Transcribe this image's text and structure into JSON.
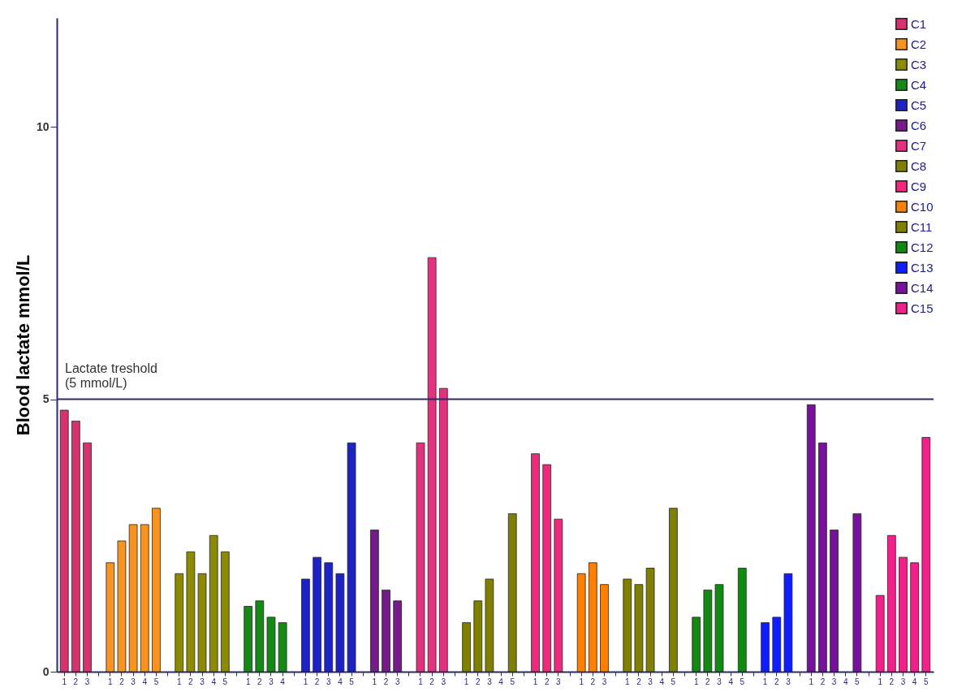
{
  "chart_data": {
    "type": "bar",
    "ylabel": "Blood lactate mmol/L",
    "categories": [
      "1",
      "2",
      "3",
      null,
      "1",
      "2",
      "3",
      "4",
      "5",
      null,
      "1",
      "2",
      "3",
      "4",
      "5",
      null,
      "1",
      "2",
      "3",
      "4",
      null,
      "1",
      "2",
      "3",
      "4",
      "5",
      null,
      "1",
      "2",
      "3",
      null,
      "1",
      "2",
      "3",
      null,
      "1",
      "2",
      "3",
      "4",
      "5",
      null,
      "1",
      "2",
      "3",
      null,
      "1",
      "2",
      "3",
      null,
      "1",
      "2",
      "3",
      "4",
      "5",
      null,
      "1",
      "2",
      "3",
      "4",
      "5",
      null,
      "1",
      "2",
      "3",
      null,
      "1",
      "2",
      "3",
      "4",
      "5",
      null,
      "1",
      "2",
      "3",
      "4",
      "5"
    ],
    "series": [
      {
        "name": "C1",
        "color": "#d9306f",
        "values": [
          4.8,
          4.6,
          4.2,
          null,
          null,
          null,
          null,
          null,
          null,
          null,
          null,
          null,
          null,
          null,
          null,
          null,
          null,
          null,
          null,
          null,
          null,
          null,
          null,
          null,
          null,
          null,
          null,
          null,
          null,
          null,
          null,
          null,
          null,
          null,
          null,
          null,
          null,
          null,
          null,
          null,
          null,
          null,
          null,
          null,
          null,
          null,
          null,
          null,
          null,
          null,
          null,
          null,
          null,
          null,
          null,
          null,
          null,
          null,
          null,
          null,
          null,
          null,
          null,
          null,
          null,
          null,
          null,
          null,
          null,
          null,
          null,
          null,
          null,
          null,
          null,
          null
        ]
      },
      {
        "name": "C2",
        "color": "#f7931e",
        "values": [
          null,
          null,
          null,
          null,
          2.0,
          2.4,
          2.7,
          2.7,
          3.0,
          null,
          null,
          null,
          null,
          null,
          null,
          null,
          null,
          null,
          null,
          null,
          null,
          null,
          null,
          null,
          null,
          null,
          null,
          null,
          null,
          null,
          null,
          null,
          null,
          null,
          null,
          null,
          null,
          null,
          null,
          null,
          null,
          null,
          null,
          null,
          null,
          null,
          null,
          null,
          null,
          null,
          null,
          null,
          null,
          null,
          null,
          null,
          null,
          null,
          null,
          null,
          null,
          null,
          null,
          null,
          null,
          null,
          null,
          null,
          null,
          null,
          null,
          null,
          null,
          null,
          null,
          null
        ]
      },
      {
        "name": "C3",
        "color": "#8c8a00",
        "values": [
          null,
          null,
          null,
          null,
          null,
          null,
          null,
          null,
          null,
          null,
          1.8,
          2.2,
          1.8,
          2.5,
          2.2,
          null,
          null,
          null,
          null,
          null,
          null,
          null,
          null,
          null,
          null,
          null,
          null,
          null,
          null,
          null,
          null,
          null,
          null,
          null,
          null,
          null,
          null,
          null,
          null,
          null,
          null,
          null,
          null,
          null,
          null,
          null,
          null,
          null,
          null,
          null,
          null,
          null,
          null,
          null,
          null,
          null,
          null,
          null,
          null,
          null,
          null,
          null,
          null,
          null,
          null,
          null,
          null,
          null,
          null,
          null,
          null,
          null,
          null,
          null,
          null,
          null
        ]
      },
      {
        "name": "C4",
        "color": "#138a13",
        "values": [
          null,
          null,
          null,
          null,
          null,
          null,
          null,
          null,
          null,
          null,
          null,
          null,
          null,
          null,
          null,
          null,
          1.2,
          1.3,
          1.0,
          0.9,
          null,
          null,
          null,
          null,
          null,
          null,
          null,
          null,
          null,
          null,
          null,
          null,
          null,
          null,
          null,
          null,
          null,
          null,
          null,
          null,
          null,
          null,
          null,
          null,
          null,
          null,
          null,
          null,
          null,
          null,
          null,
          null,
          null,
          null,
          null,
          null,
          null,
          null,
          null,
          null,
          null,
          null,
          null,
          null,
          null,
          null,
          null,
          null,
          null,
          null,
          null,
          null,
          null,
          null,
          null,
          null
        ]
      },
      {
        "name": "C5",
        "color": "#1c22c4",
        "values": [
          null,
          null,
          null,
          null,
          null,
          null,
          null,
          null,
          null,
          null,
          null,
          null,
          null,
          null,
          null,
          null,
          null,
          null,
          null,
          null,
          null,
          1.7,
          2.1,
          2.0,
          1.8,
          4.2,
          null,
          null,
          null,
          null,
          null,
          null,
          null,
          null,
          null,
          null,
          null,
          null,
          null,
          null,
          null,
          null,
          null,
          null,
          null,
          null,
          null,
          null,
          null,
          null,
          null,
          null,
          null,
          null,
          null,
          null,
          null,
          null,
          null,
          null,
          null,
          null,
          null,
          null,
          null,
          null,
          null,
          null,
          null,
          null,
          null,
          null,
          null,
          null,
          null,
          null
        ]
      },
      {
        "name": "C6",
        "color": "#761a8c",
        "values": [
          null,
          null,
          null,
          null,
          null,
          null,
          null,
          null,
          null,
          null,
          null,
          null,
          null,
          null,
          null,
          null,
          null,
          null,
          null,
          null,
          null,
          null,
          null,
          null,
          null,
          null,
          null,
          2.6,
          1.5,
          1.3,
          null,
          null,
          null,
          null,
          null,
          null,
          null,
          null,
          null,
          null,
          null,
          null,
          null,
          null,
          null,
          null,
          null,
          null,
          null,
          null,
          null,
          null,
          null,
          null,
          null,
          null,
          null,
          null,
          null,
          null,
          null,
          null,
          null,
          null,
          null,
          null,
          null,
          null,
          null,
          null,
          null,
          null,
          null,
          null,
          null,
          null
        ]
      },
      {
        "name": "C7",
        "color": "#e3307f",
        "values": [
          null,
          null,
          null,
          null,
          null,
          null,
          null,
          null,
          null,
          null,
          null,
          null,
          null,
          null,
          null,
          null,
          null,
          null,
          null,
          null,
          null,
          null,
          null,
          null,
          null,
          null,
          null,
          null,
          null,
          null,
          null,
          4.2,
          7.6,
          5.2,
          null,
          null,
          null,
          null,
          null,
          null,
          null,
          null,
          null,
          null,
          null,
          null,
          null,
          null,
          null,
          null,
          null,
          null,
          null,
          null,
          null,
          null,
          null,
          null,
          null,
          null,
          null,
          null,
          null,
          null,
          null,
          null,
          null,
          null,
          null,
          null,
          null,
          null,
          null,
          null,
          null,
          null
        ]
      },
      {
        "name": "C8",
        "color": "#808000",
        "values": [
          null,
          null,
          null,
          null,
          null,
          null,
          null,
          null,
          null,
          null,
          null,
          null,
          null,
          null,
          null,
          null,
          null,
          null,
          null,
          null,
          null,
          null,
          null,
          null,
          null,
          null,
          null,
          null,
          null,
          null,
          null,
          null,
          null,
          null,
          null,
          0.9,
          1.3,
          1.7,
          null,
          2.9,
          null,
          null,
          null,
          null,
          null,
          null,
          null,
          null,
          null,
          null,
          null,
          null,
          null,
          null,
          null,
          null,
          null,
          null,
          null,
          null,
          null,
          null,
          null,
          null,
          null,
          null,
          null,
          null,
          null,
          null,
          null,
          null,
          null,
          null,
          null,
          null
        ]
      },
      {
        "name": "C9",
        "color": "#f2287f",
        "values": [
          null,
          null,
          null,
          null,
          null,
          null,
          null,
          null,
          null,
          null,
          null,
          null,
          null,
          null,
          null,
          null,
          null,
          null,
          null,
          null,
          null,
          null,
          null,
          null,
          null,
          null,
          null,
          null,
          null,
          null,
          null,
          null,
          null,
          null,
          null,
          null,
          null,
          null,
          null,
          null,
          null,
          4.0,
          3.8,
          2.8,
          null,
          null,
          null,
          null,
          null,
          null,
          null,
          null,
          null,
          null,
          null,
          null,
          null,
          null,
          null,
          null,
          null,
          null,
          null,
          null,
          null,
          null,
          null,
          null,
          null,
          null,
          null,
          null,
          null,
          null,
          null,
          null
        ]
      },
      {
        "name": "C10",
        "color": "#ff8000",
        "values": [
          null,
          null,
          null,
          null,
          null,
          null,
          null,
          null,
          null,
          null,
          null,
          null,
          null,
          null,
          null,
          null,
          null,
          null,
          null,
          null,
          null,
          null,
          null,
          null,
          null,
          null,
          null,
          null,
          null,
          null,
          null,
          null,
          null,
          null,
          null,
          null,
          null,
          null,
          null,
          null,
          null,
          null,
          null,
          null,
          null,
          1.8,
          2.0,
          1.6,
          null,
          null,
          null,
          null,
          null,
          null,
          null,
          null,
          null,
          null,
          null,
          null,
          null,
          null,
          null,
          null,
          null,
          null,
          null,
          null,
          null,
          null,
          null,
          null,
          null,
          null,
          null,
          null
        ]
      },
      {
        "name": "C11",
        "color": "#7f7f00",
        "values": [
          null,
          null,
          null,
          null,
          null,
          null,
          null,
          null,
          null,
          null,
          null,
          null,
          null,
          null,
          null,
          null,
          null,
          null,
          null,
          null,
          null,
          null,
          null,
          null,
          null,
          null,
          null,
          null,
          null,
          null,
          null,
          null,
          null,
          null,
          null,
          null,
          null,
          null,
          null,
          null,
          null,
          null,
          null,
          null,
          null,
          null,
          null,
          null,
          null,
          1.7,
          1.6,
          1.9,
          null,
          3.0,
          null,
          null,
          null,
          null,
          null,
          null,
          null,
          null,
          null,
          null,
          null,
          null,
          null,
          null,
          null,
          null,
          null,
          null,
          null,
          null,
          null,
          null
        ]
      },
      {
        "name": "C12",
        "color": "#118a11",
        "values": [
          null,
          null,
          null,
          null,
          null,
          null,
          null,
          null,
          null,
          null,
          null,
          null,
          null,
          null,
          null,
          null,
          null,
          null,
          null,
          null,
          null,
          null,
          null,
          null,
          null,
          null,
          null,
          null,
          null,
          null,
          null,
          null,
          null,
          null,
          null,
          null,
          null,
          null,
          null,
          null,
          null,
          null,
          null,
          null,
          null,
          null,
          null,
          null,
          null,
          null,
          null,
          null,
          null,
          null,
          null,
          1.0,
          1.5,
          1.6,
          null,
          1.9,
          null,
          null,
          null,
          null,
          null,
          null,
          null,
          null,
          null,
          null,
          null,
          null,
          null,
          null,
          null,
          null
        ]
      },
      {
        "name": "C13",
        "color": "#0f1eff",
        "values": [
          null,
          null,
          null,
          null,
          null,
          null,
          null,
          null,
          null,
          null,
          null,
          null,
          null,
          null,
          null,
          null,
          null,
          null,
          null,
          null,
          null,
          null,
          null,
          null,
          null,
          null,
          null,
          null,
          null,
          null,
          null,
          null,
          null,
          null,
          null,
          null,
          null,
          null,
          null,
          null,
          null,
          null,
          null,
          null,
          null,
          null,
          null,
          null,
          null,
          null,
          null,
          null,
          null,
          null,
          null,
          null,
          null,
          null,
          null,
          null,
          null,
          0.9,
          1.0,
          1.8,
          null,
          null,
          null,
          null,
          null,
          null,
          null,
          null,
          null,
          null,
          null,
          null
        ]
      },
      {
        "name": "C14",
        "color": "#7a10a0",
        "values": [
          null,
          null,
          null,
          null,
          null,
          null,
          null,
          null,
          null,
          null,
          null,
          null,
          null,
          null,
          null,
          null,
          null,
          null,
          null,
          null,
          null,
          null,
          null,
          null,
          null,
          null,
          null,
          null,
          null,
          null,
          null,
          null,
          null,
          null,
          null,
          null,
          null,
          null,
          null,
          null,
          null,
          null,
          null,
          null,
          null,
          null,
          null,
          null,
          null,
          null,
          null,
          null,
          null,
          null,
          null,
          null,
          null,
          null,
          null,
          null,
          null,
          null,
          null,
          null,
          null,
          4.9,
          4.2,
          2.6,
          null,
          2.9,
          null,
          null,
          null,
          null,
          null,
          null
        ]
      },
      {
        "name": "C15",
        "color": "#f2208a",
        "values": [
          null,
          null,
          null,
          null,
          null,
          null,
          null,
          null,
          null,
          null,
          null,
          null,
          null,
          null,
          null,
          null,
          null,
          null,
          null,
          null,
          null,
          null,
          null,
          null,
          null,
          null,
          null,
          null,
          null,
          null,
          null,
          null,
          null,
          null,
          null,
          null,
          null,
          null,
          null,
          null,
          null,
          null,
          null,
          null,
          null,
          null,
          null,
          null,
          null,
          null,
          null,
          null,
          null,
          null,
          null,
          null,
          null,
          null,
          null,
          null,
          null,
          null,
          null,
          null,
          null,
          null,
          null,
          null,
          null,
          null,
          null,
          1.4,
          2.5,
          2.1,
          2.0,
          4.3
        ]
      }
    ],
    "ylim": [
      0,
      12
    ],
    "yticks": [
      0,
      5,
      10
    ],
    "grid": false,
    "legend": "top right",
    "ref_lines": [
      {
        "axis": "y",
        "value": 5,
        "label": "Lactate treshold\n(5 mmol/L)",
        "color": "#2b2b6b"
      }
    ]
  }
}
